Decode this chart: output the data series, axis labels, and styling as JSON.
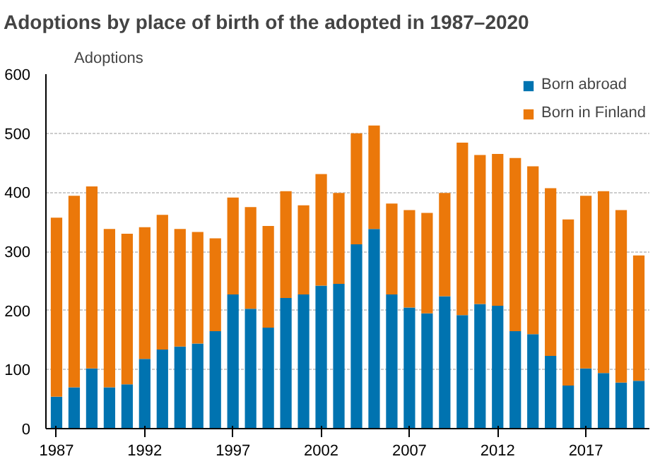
{
  "chart_data": {
    "type": "bar",
    "title": "Adoptions by place of birth of the adopted in 1987–2020",
    "ylabel": "Adoptions",
    "categories": [
      "1987",
      null,
      null,
      null,
      null,
      "1992",
      null,
      null,
      null,
      null,
      "1997",
      null,
      null,
      null,
      null,
      "2002",
      null,
      null,
      null,
      null,
      "2007",
      null,
      null,
      null,
      null,
      "2012",
      null,
      null,
      null,
      null,
      "2017",
      null,
      null,
      null
    ],
    "stacked": true,
    "ylim": [
      0,
      600
    ],
    "yticks": [
      0,
      100,
      200,
      300,
      400,
      500,
      600
    ],
    "grid": "y",
    "legend": "top right",
    "series": [
      {
        "name": "Born abroad",
        "color": "#0073b0",
        "values": [
          54,
          70,
          102,
          70,
          75,
          118,
          134,
          139,
          144,
          165,
          227,
          203,
          171,
          221,
          227,
          242,
          245,
          312,
          338,
          227,
          205,
          195,
          224,
          192,
          211,
          208,
          165,
          160,
          123,
          73,
          102,
          94,
          78,
          81
        ]
      },
      {
        "name": "Born in Finland",
        "color": "#eb780a",
        "values": [
          303,
          324,
          308,
          268,
          255,
          223,
          228,
          199,
          189,
          157,
          164,
          172,
          172,
          181,
          151,
          189,
          154,
          188,
          175,
          154,
          165,
          170,
          175,
          292,
          252,
          257,
          293,
          284,
          284,
          281,
          292,
          308,
          292,
          212
        ]
      }
    ]
  }
}
